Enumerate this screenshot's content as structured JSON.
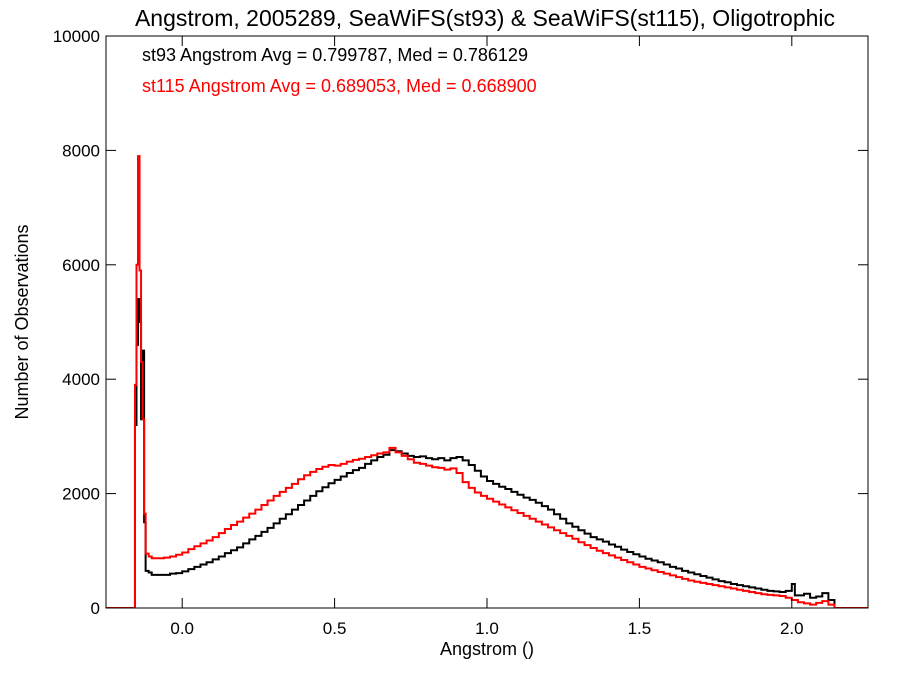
{
  "chart_data": {
    "type": "line",
    "title": "Angstrom, 2005289, SeaWiFS(st93) & SeaWiFS(st115), Oligotrophic",
    "xlabel": "Angstrom ()",
    "ylabel": "Number of Observations",
    "xlim": [
      -0.25,
      2.25
    ],
    "ylim": [
      0,
      10000
    ],
    "x_ticks": [
      0.0,
      0.5,
      1.0,
      1.5,
      2.0
    ],
    "x_tick_labels": [
      "0.0",
      "0.5",
      "1.0",
      "1.5",
      "2.0"
    ],
    "y_ticks": [
      0,
      2000,
      4000,
      6000,
      8000,
      10000
    ],
    "y_tick_labels": [
      "0",
      "2000",
      "4000",
      "6000",
      "8000",
      "10000"
    ],
    "grid": false,
    "step": true,
    "annotations": [
      {
        "text": "st93 Angstrom Avg = 0.799787, Med = 0.786129",
        "color": "#000000"
      },
      {
        "text": "st115 Angstrom Avg = 0.689053, Med = 0.668900",
        "color": "#ff0000"
      }
    ],
    "series": [
      {
        "color": "#000000",
        "points": [
          [
            -0.25,
            0
          ],
          [
            -0.16,
            0
          ],
          [
            -0.155,
            3200
          ],
          [
            -0.15,
            4600
          ],
          [
            -0.145,
            5400
          ],
          [
            -0.14,
            5000
          ],
          [
            -0.135,
            3300
          ],
          [
            -0.13,
            4500
          ],
          [
            -0.125,
            1500
          ],
          [
            -0.12,
            650
          ],
          [
            -0.11,
            620
          ],
          [
            -0.1,
            580
          ],
          [
            -0.08,
            580
          ],
          [
            -0.06,
            580
          ],
          [
            -0.04,
            600
          ],
          [
            -0.02,
            610
          ],
          [
            0.0,
            640
          ],
          [
            0.02,
            680
          ],
          [
            0.04,
            720
          ],
          [
            0.06,
            760
          ],
          [
            0.08,
            800
          ],
          [
            0.1,
            850
          ],
          [
            0.12,
            900
          ],
          [
            0.14,
            960
          ],
          [
            0.16,
            1010
          ],
          [
            0.18,
            1060
          ],
          [
            0.2,
            1130
          ],
          [
            0.22,
            1200
          ],
          [
            0.24,
            1260
          ],
          [
            0.26,
            1330
          ],
          [
            0.28,
            1400
          ],
          [
            0.3,
            1480
          ],
          [
            0.32,
            1560
          ],
          [
            0.34,
            1640
          ],
          [
            0.36,
            1720
          ],
          [
            0.38,
            1800
          ],
          [
            0.4,
            1880
          ],
          [
            0.42,
            1960
          ],
          [
            0.44,
            2040
          ],
          [
            0.46,
            2110
          ],
          [
            0.48,
            2180
          ],
          [
            0.5,
            2240
          ],
          [
            0.52,
            2300
          ],
          [
            0.54,
            2360
          ],
          [
            0.56,
            2410
          ],
          [
            0.58,
            2450
          ],
          [
            0.6,
            2520
          ],
          [
            0.62,
            2580
          ],
          [
            0.64,
            2640
          ],
          [
            0.66,
            2680
          ],
          [
            0.68,
            2760
          ],
          [
            0.7,
            2740
          ],
          [
            0.72,
            2700
          ],
          [
            0.74,
            2660
          ],
          [
            0.76,
            2640
          ],
          [
            0.78,
            2650
          ],
          [
            0.8,
            2620
          ],
          [
            0.82,
            2600
          ],
          [
            0.84,
            2620
          ],
          [
            0.86,
            2580
          ],
          [
            0.88,
            2620
          ],
          [
            0.9,
            2640
          ],
          [
            0.92,
            2580
          ],
          [
            0.94,
            2500
          ],
          [
            0.96,
            2400
          ],
          [
            0.98,
            2300
          ],
          [
            1.0,
            2220
          ],
          [
            1.02,
            2170
          ],
          [
            1.04,
            2120
          ],
          [
            1.06,
            2080
          ],
          [
            1.08,
            2030
          ],
          [
            1.1,
            1980
          ],
          [
            1.12,
            1930
          ],
          [
            1.14,
            1890
          ],
          [
            1.16,
            1840
          ],
          [
            1.18,
            1780
          ],
          [
            1.2,
            1720
          ],
          [
            1.22,
            1640
          ],
          [
            1.24,
            1560
          ],
          [
            1.26,
            1480
          ],
          [
            1.28,
            1420
          ],
          [
            1.3,
            1360
          ],
          [
            1.32,
            1300
          ],
          [
            1.34,
            1240
          ],
          [
            1.36,
            1200
          ],
          [
            1.38,
            1160
          ],
          [
            1.4,
            1110
          ],
          [
            1.42,
            1070
          ],
          [
            1.44,
            1020
          ],
          [
            1.46,
            980
          ],
          [
            1.48,
            940
          ],
          [
            1.5,
            900
          ],
          [
            1.52,
            860
          ],
          [
            1.54,
            830
          ],
          [
            1.56,
            800
          ],
          [
            1.58,
            760
          ],
          [
            1.6,
            720
          ],
          [
            1.62,
            690
          ],
          [
            1.64,
            650
          ],
          [
            1.66,
            620
          ],
          [
            1.68,
            590
          ],
          [
            1.7,
            560
          ],
          [
            1.72,
            530
          ],
          [
            1.74,
            500
          ],
          [
            1.76,
            470
          ],
          [
            1.78,
            450
          ],
          [
            1.8,
            420
          ],
          [
            1.82,
            400
          ],
          [
            1.84,
            380
          ],
          [
            1.86,
            360
          ],
          [
            1.88,
            340
          ],
          [
            1.9,
            320
          ],
          [
            1.92,
            300
          ],
          [
            1.94,
            290
          ],
          [
            1.96,
            280
          ],
          [
            1.98,
            300
          ],
          [
            2.0,
            420
          ],
          [
            2.01,
            220
          ],
          [
            2.04,
            250
          ],
          [
            2.06,
            180
          ],
          [
            2.08,
            200
          ],
          [
            2.1,
            260
          ],
          [
            2.12,
            140
          ],
          [
            2.14,
            0
          ],
          [
            2.25,
            0
          ]
        ]
      },
      {
        "color": "#ff0000",
        "points": [
          [
            -0.25,
            0
          ],
          [
            -0.16,
            0
          ],
          [
            -0.155,
            3900
          ],
          [
            -0.15,
            6000
          ],
          [
            -0.145,
            7900
          ],
          [
            -0.14,
            5900
          ],
          [
            -0.135,
            4300
          ],
          [
            -0.13,
            3300
          ],
          [
            -0.125,
            1650
          ],
          [
            -0.12,
            950
          ],
          [
            -0.11,
            900
          ],
          [
            -0.1,
            870
          ],
          [
            -0.08,
            870
          ],
          [
            -0.06,
            880
          ],
          [
            -0.04,
            900
          ],
          [
            -0.02,
            930
          ],
          [
            0.0,
            970
          ],
          [
            0.02,
            1030
          ],
          [
            0.04,
            1080
          ],
          [
            0.06,
            1130
          ],
          [
            0.08,
            1180
          ],
          [
            0.1,
            1240
          ],
          [
            0.12,
            1310
          ],
          [
            0.14,
            1380
          ],
          [
            0.16,
            1450
          ],
          [
            0.18,
            1510
          ],
          [
            0.2,
            1580
          ],
          [
            0.22,
            1650
          ],
          [
            0.24,
            1720
          ],
          [
            0.26,
            1800
          ],
          [
            0.28,
            1880
          ],
          [
            0.3,
            1960
          ],
          [
            0.32,
            2030
          ],
          [
            0.34,
            2100
          ],
          [
            0.36,
            2170
          ],
          [
            0.38,
            2250
          ],
          [
            0.4,
            2320
          ],
          [
            0.42,
            2380
          ],
          [
            0.44,
            2430
          ],
          [
            0.46,
            2470
          ],
          [
            0.48,
            2500
          ],
          [
            0.5,
            2490
          ],
          [
            0.52,
            2520
          ],
          [
            0.54,
            2560
          ],
          [
            0.56,
            2590
          ],
          [
            0.58,
            2610
          ],
          [
            0.6,
            2640
          ],
          [
            0.62,
            2670
          ],
          [
            0.64,
            2700
          ],
          [
            0.66,
            2720
          ],
          [
            0.68,
            2800
          ],
          [
            0.7,
            2720
          ],
          [
            0.72,
            2660
          ],
          [
            0.74,
            2600
          ],
          [
            0.76,
            2540
          ],
          [
            0.78,
            2520
          ],
          [
            0.8,
            2490
          ],
          [
            0.82,
            2460
          ],
          [
            0.84,
            2450
          ],
          [
            0.86,
            2420
          ],
          [
            0.88,
            2440
          ],
          [
            0.9,
            2360
          ],
          [
            0.92,
            2200
          ],
          [
            0.94,
            2100
          ],
          [
            0.96,
            2020
          ],
          [
            0.98,
            1960
          ],
          [
            1.0,
            1910
          ],
          [
            1.02,
            1860
          ],
          [
            1.04,
            1810
          ],
          [
            1.06,
            1760
          ],
          [
            1.08,
            1710
          ],
          [
            1.1,
            1660
          ],
          [
            1.12,
            1610
          ],
          [
            1.14,
            1560
          ],
          [
            1.16,
            1510
          ],
          [
            1.18,
            1460
          ],
          [
            1.2,
            1410
          ],
          [
            1.22,
            1360
          ],
          [
            1.24,
            1310
          ],
          [
            1.26,
            1260
          ],
          [
            1.28,
            1210
          ],
          [
            1.3,
            1150
          ],
          [
            1.32,
            1100
          ],
          [
            1.34,
            1050
          ],
          [
            1.36,
            1000
          ],
          [
            1.38,
            960
          ],
          [
            1.4,
            920
          ],
          [
            1.42,
            880
          ],
          [
            1.44,
            840
          ],
          [
            1.46,
            800
          ],
          [
            1.48,
            760
          ],
          [
            1.5,
            720
          ],
          [
            1.52,
            690
          ],
          [
            1.54,
            660
          ],
          [
            1.56,
            630
          ],
          [
            1.58,
            600
          ],
          [
            1.6,
            570
          ],
          [
            1.62,
            540
          ],
          [
            1.64,
            510
          ],
          [
            1.66,
            480
          ],
          [
            1.68,
            460
          ],
          [
            1.7,
            440
          ],
          [
            1.72,
            420
          ],
          [
            1.74,
            400
          ],
          [
            1.76,
            380
          ],
          [
            1.78,
            360
          ],
          [
            1.8,
            340
          ],
          [
            1.82,
            320
          ],
          [
            1.84,
            300
          ],
          [
            1.86,
            280
          ],
          [
            1.88,
            260
          ],
          [
            1.9,
            240
          ],
          [
            1.92,
            230
          ],
          [
            1.94,
            220
          ],
          [
            1.96,
            210
          ],
          [
            1.98,
            180
          ],
          [
            2.0,
            140
          ],
          [
            2.02,
            100
          ],
          [
            2.04,
            80
          ],
          [
            2.06,
            60
          ],
          [
            2.08,
            90
          ],
          [
            2.1,
            120
          ],
          [
            2.12,
            60
          ],
          [
            2.14,
            0
          ],
          [
            2.25,
            0
          ]
        ]
      }
    ]
  }
}
